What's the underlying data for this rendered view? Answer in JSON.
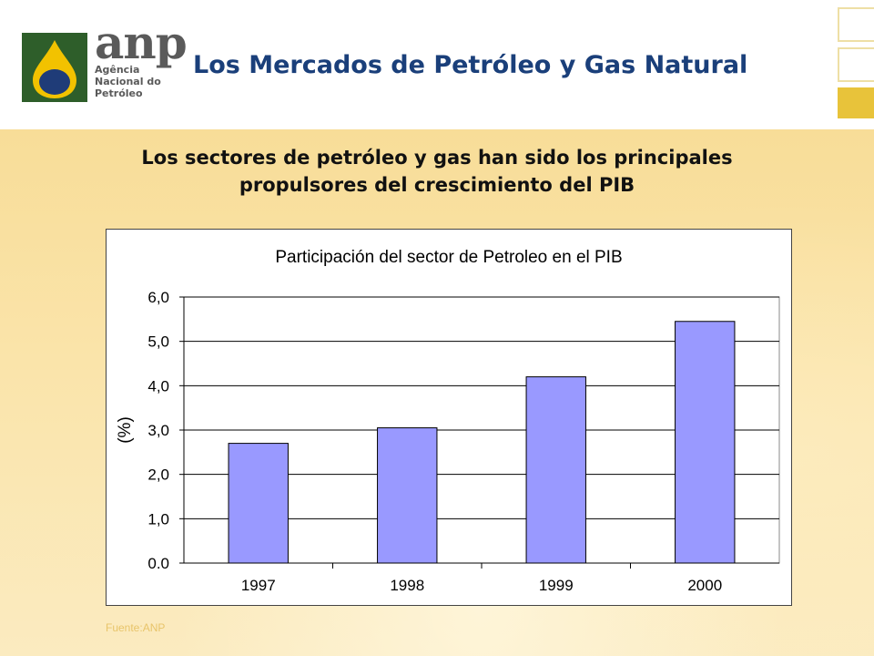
{
  "header": {
    "logo": {
      "brand": "anp",
      "lines": [
        "Agência",
        "Nacional do",
        "Petróleo"
      ]
    },
    "title": "Los Mercados de Petróleo y Gas Natural"
  },
  "subtitle": {
    "line1": "Los sectores de petróleo y gas han sido los principales",
    "line2": "propulsores del crescimiento del PIB"
  },
  "chart_data": {
    "type": "bar",
    "title": "Participación del sector de Petroleo en el PIB",
    "xlabel": "",
    "ylabel": "(%)",
    "categories": [
      "1997",
      "1998",
      "1999",
      "2000"
    ],
    "values": [
      2.7,
      3.05,
      4.2,
      5.45
    ],
    "ylim": [
      0,
      6
    ],
    "yticks": [
      "0.0",
      "1,0",
      "2,0",
      "3,0",
      "4,0",
      "5,0",
      "6,0"
    ],
    "grid": true,
    "legend": "none",
    "bar_color": "#9999FF"
  },
  "source": "Fuente:ANP",
  "colors": {
    "title": "#1A3F7A",
    "logo_green": "#2E5E2A",
    "logo_yellow": "#F2C200",
    "logo_blue": "#1F3C78",
    "deco_gold": "#E8C33A"
  }
}
